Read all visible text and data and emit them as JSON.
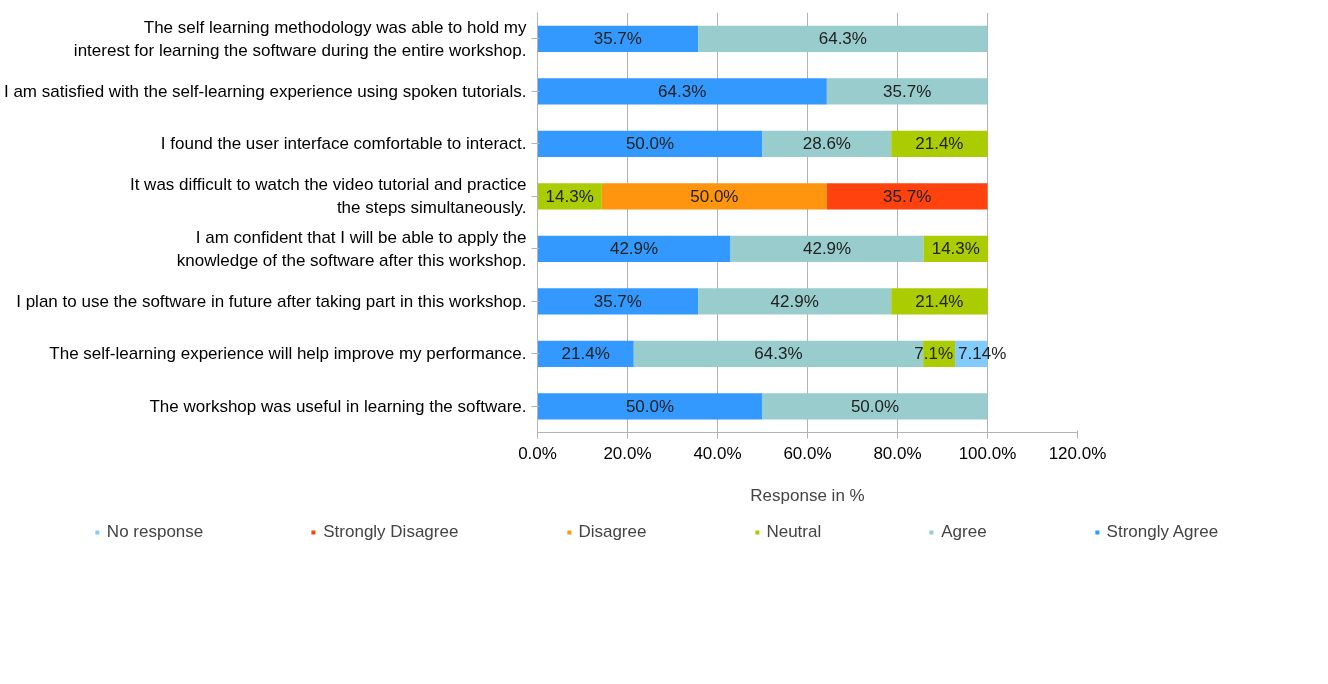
{
  "chart_data": {
    "type": "bar",
    "orientation": "horizontal",
    "stacked": true,
    "categories": [
      "The self learning methodology was able to hold my\ninterest for learning the software during the entire workshop.",
      "I am satisfied with the self-learning experience using spoken tutorials.",
      "I found the user interface comfortable to interact.",
      "It was difficult to watch the video tutorial and practice\nthe steps simultaneously.",
      "I am confident that I will be able to apply the\nknowledge of the software after this workshop.",
      "I plan to use the software in future after taking part in this workshop.",
      "The self-learning experience will help improve my performance.",
      "The workshop was useful in learning the software."
    ],
    "series": [
      {
        "name": "Strongly Agree",
        "color": "#3399ff",
        "values": [
          35.7,
          64.3,
          50.0,
          null,
          42.9,
          35.7,
          21.4,
          50.0
        ],
        "value_labels": [
          "35.7%",
          "64.3%",
          "50.0%",
          null,
          "42.9%",
          "35.7%",
          "21.4%",
          "50.0%"
        ]
      },
      {
        "name": "Agree",
        "color": "#99cccc",
        "values": [
          64.3,
          35.7,
          28.6,
          null,
          42.9,
          42.9,
          64.3,
          50.0
        ],
        "value_labels": [
          "64.3%",
          "35.7%",
          "28.6%",
          null,
          "42.9%",
          "42.9%",
          "64.3%",
          "50.0%"
        ]
      },
      {
        "name": "Neutral",
        "color": "#aacc00",
        "values": [
          null,
          null,
          21.4,
          14.3,
          14.3,
          21.4,
          7.1,
          null
        ],
        "value_labels": [
          null,
          null,
          "21.4%",
          "14.3%",
          "14.3%",
          "21.4%",
          "7.1%",
          null
        ]
      },
      {
        "name": "Disagree",
        "color": "#ff950e",
        "values": [
          null,
          null,
          null,
          50.0,
          null,
          null,
          null,
          null
        ],
        "value_labels": [
          null,
          null,
          null,
          "50.0%",
          null,
          null,
          null,
          null
        ]
      },
      {
        "name": "Strongly Disagree",
        "color": "#ff420e",
        "values": [
          null,
          null,
          null,
          35.7,
          null,
          null,
          null,
          null
        ],
        "value_labels": [
          null,
          null,
          null,
          "35.7%",
          null,
          null,
          null,
          null
        ]
      },
      {
        "name": "No response",
        "color": "#83caff",
        "values": [
          null,
          null,
          null,
          null,
          null,
          null,
          7.14,
          null
        ],
        "value_labels": [
          null,
          null,
          null,
          null,
          null,
          null,
          "7.14%",
          null
        ]
      }
    ],
    "xlim": [
      0,
      120
    ],
    "xticks": [
      {
        "value": 0,
        "label": "0.0%"
      },
      {
        "value": 20,
        "label": "20.0%"
      },
      {
        "value": 40,
        "label": "40.0%"
      },
      {
        "value": 60,
        "label": "60.0%"
      },
      {
        "value": 80,
        "label": "80.0%"
      },
      {
        "value": 100,
        "label": "100.0%"
      },
      {
        "value": 120,
        "label": "120.0%"
      }
    ],
    "xlabel": "Response in %",
    "grid": "x",
    "legend": "bottom"
  }
}
